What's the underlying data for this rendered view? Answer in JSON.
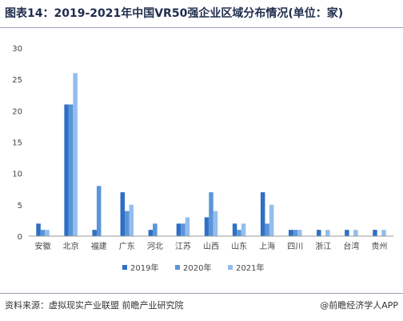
{
  "header": {
    "title": "图表14：2019-2021年中国VR50强企业区域分布情况(单位：家)"
  },
  "footer": {
    "source": "资料来源：虚拟现实产业联盟 前瞻产业研究院",
    "brand": "@前瞻经济学人APP"
  },
  "colors": {
    "s2019": "#2f6fc4",
    "s2020": "#5b95d9",
    "s2021": "#93bdee",
    "axis": "#999999",
    "grid": "#e6e6e6"
  },
  "chart_data": {
    "type": "bar",
    "title": "图表14：2019-2021年中国VR50强企业区域分布情况(单位：家)",
    "xlabel": "",
    "ylabel": "",
    "ylim": [
      0,
      30
    ],
    "yticks": [
      0,
      5,
      10,
      15,
      20,
      25,
      30
    ],
    "grid": false,
    "legend": "bottom",
    "categories": [
      "安徽",
      "北京",
      "福建",
      "广东",
      "河北",
      "江苏",
      "山西",
      "山东",
      "上海",
      "四川",
      "浙江",
      "台湾",
      "贵州"
    ],
    "series": [
      {
        "name": "2019年",
        "values": [
          2,
          21,
          1,
          7,
          1,
          2,
          3,
          2,
          7,
          1,
          1,
          1,
          1
        ]
      },
      {
        "name": "2020年",
        "values": [
          1,
          21,
          8,
          4,
          2,
          2,
          7,
          1,
          2,
          1,
          0,
          0,
          0
        ]
      },
      {
        "name": "2021年",
        "values": [
          1,
          26,
          0,
          5,
          0,
          3,
          4,
          2,
          5,
          1,
          1,
          1,
          1
        ]
      }
    ]
  }
}
